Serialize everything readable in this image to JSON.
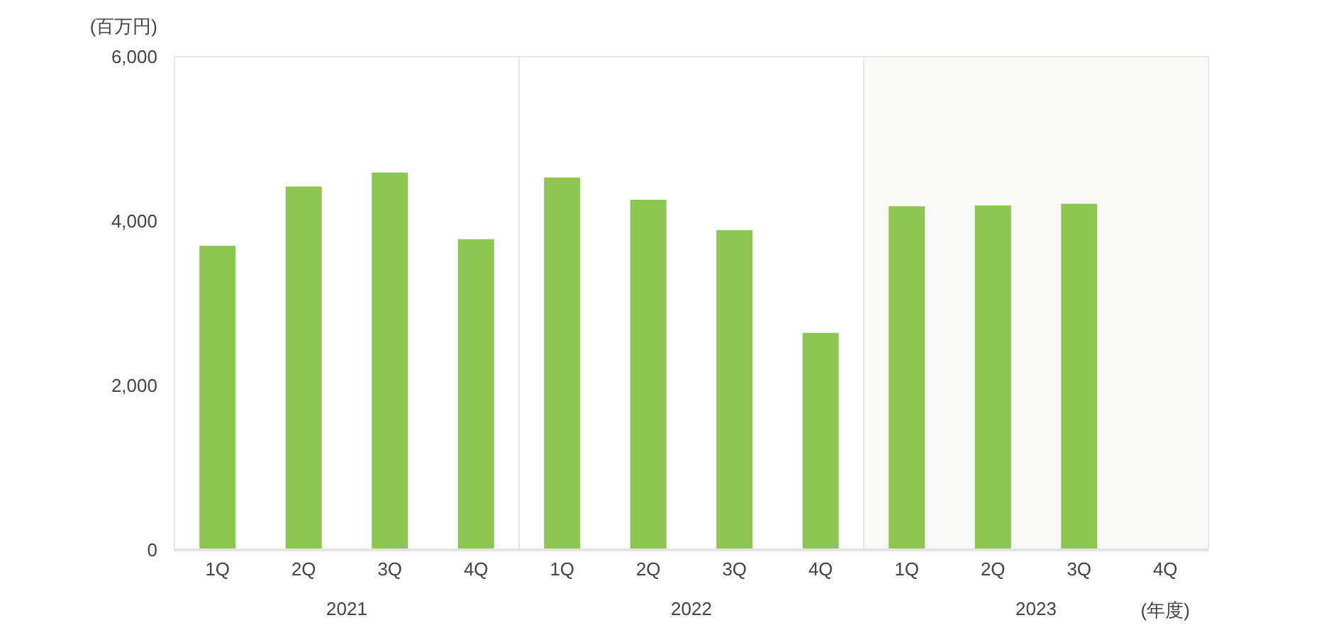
{
  "chart_data": {
    "type": "bar",
    "ylabel": "(百万円)",
    "xlabel": "(年度)",
    "categories": [
      "1Q",
      "2Q",
      "3Q",
      "4Q",
      "1Q",
      "2Q",
      "3Q",
      "4Q",
      "1Q",
      "2Q",
      "3Q",
      "4Q"
    ],
    "values": [
      3700,
      4420,
      4590,
      3780,
      4530,
      4260,
      3890,
      2640,
      4180,
      4190,
      4210,
      null
    ],
    "color": "#8dc553",
    "ylim": [
      0,
      6000
    ],
    "yticks": [
      {
        "value": 0,
        "label": "0"
      },
      {
        "value": 2000,
        "label": "2,000"
      },
      {
        "value": 4000,
        "label": "4,000"
      },
      {
        "value": 6000,
        "label": "6,000"
      }
    ],
    "annotations": [
      "2021",
      "2022",
      "2023"
    ],
    "grid": false
  }
}
